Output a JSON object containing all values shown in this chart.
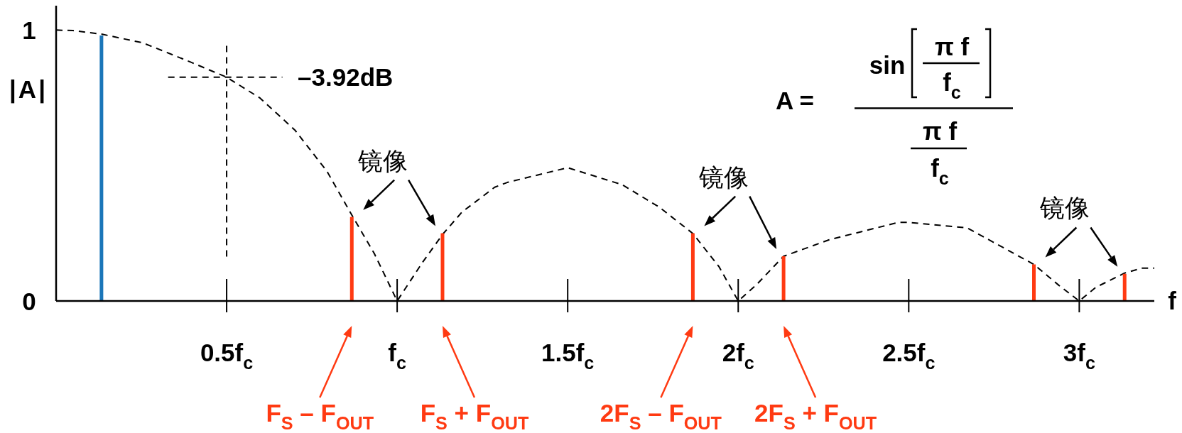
{
  "chart_data": {
    "type": "bar",
    "xlabel": "f",
    "ylabel": "|A|",
    "xlim": [
      0,
      3.22
    ],
    "ylim": [
      0,
      1.09
    ],
    "xticks": [
      {
        "value": 0.5,
        "label": "0.5f$_{c}$"
      },
      {
        "value": 1,
        "label": "f$_{c}$"
      },
      {
        "value": 1.5,
        "label": "1.5f$_{c}$"
      },
      {
        "value": 2,
        "label": "2f$_{c}$"
      },
      {
        "value": 2.5,
        "label": "2.5f$_{c}$"
      },
      {
        "value": 3,
        "label": "3f$_{c}$"
      }
    ],
    "yticks": [
      0,
      1
    ],
    "ref_lines": [
      {
        "axis": "x",
        "value": 0.5,
        "line_style": "dashed",
        "color": "#000000"
      },
      {
        "axis": "y",
        "value": 0.826,
        "label": "–3.92dB",
        "line_style": "dashed",
        "color": "#000000"
      }
    ],
    "series": [
      {
        "type": "line",
        "color": "#000000",
        "line_style": "dashed",
        "x": [
          0,
          0.05,
          0.133,
          0.254,
          0.394,
          0.5,
          0.598,
          0.7,
          0.794,
          0.868,
          0.933,
          1.0,
          1.073,
          1.134,
          1.19,
          1.286,
          1.324,
          1.5,
          1.66,
          1.769,
          1.867,
          1.944,
          2.0,
          2.052,
          2.133,
          2.267,
          2.469,
          2.5,
          2.671,
          2.867,
          2.94,
          3.0,
          3.048,
          3.133,
          3.183,
          3.22
        ],
        "values": [
          1.0,
          0.998,
          0.985,
          0.953,
          0.882,
          0.826,
          0.749,
          0.631,
          0.479,
          0.315,
          0.175,
          0.0,
          0.14,
          0.247,
          0.328,
          0.42,
          0.438,
          0.492,
          0.429,
          0.346,
          0.249,
          0.126,
          0.0,
          0.058,
          0.165,
          0.226,
          0.29,
          0.29,
          0.27,
          0.135,
          0.058,
          0.0,
          0.05,
          0.103,
          0.121,
          0.121
        ]
      },
      {
        "color": "#1b76b9",
        "x": [
          0.133
        ],
        "values": [
          0.98
        ]
      },
      {
        "color": "#ff3a12",
        "x": [
          0.867,
          1.133,
          1.867,
          2.133,
          2.867,
          3.133
        ],
        "values": [
          0.31,
          0.25,
          0.25,
          0.165,
          0.135,
          0.1
        ]
      }
    ],
    "annotations": [
      "A =",
      "sin",
      "π f",
      "f$_{c}$",
      "π f",
      "f$_{c}$",
      "镜像",
      "镜像",
      "镜像",
      "F$_{S}$ – F$_{OUT}$",
      "F$_{S}$ + F$_{OUT}$",
      "2F$_{S}$ – F$_{OUT}$",
      "2F$_{S}$ + F$_{OUT}$"
    ]
  }
}
